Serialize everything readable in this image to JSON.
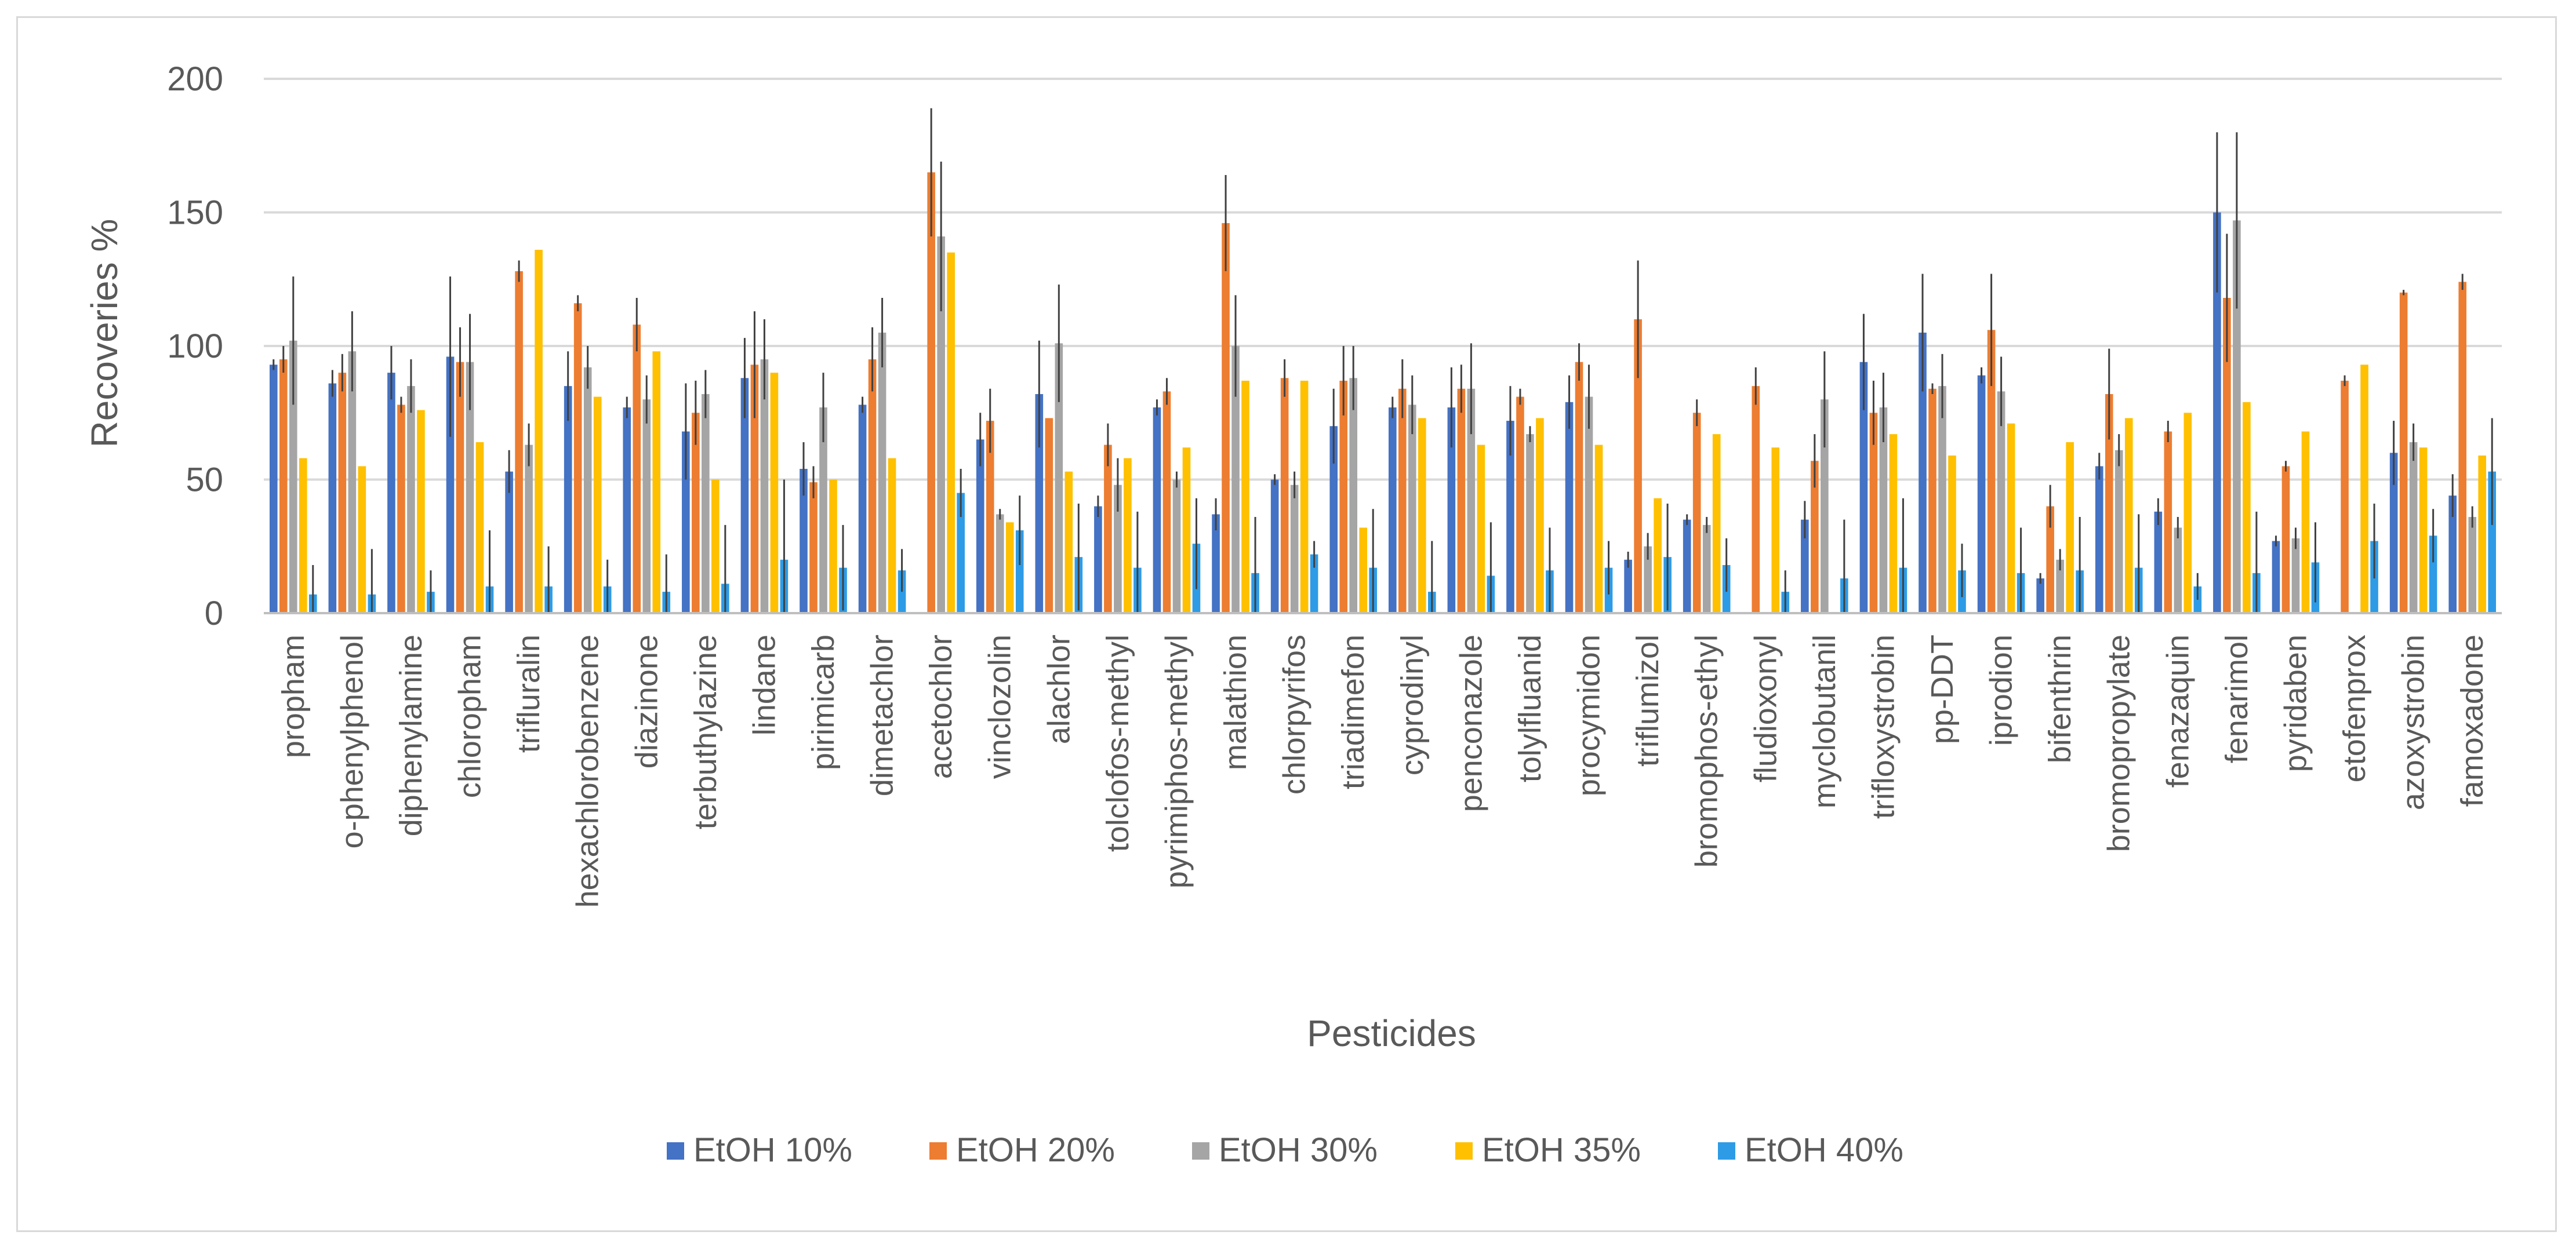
{
  "chart_data": {
    "type": "bar",
    "title": "",
    "xlabel": "Pesticides",
    "ylabel": "Recoveries %",
    "ylim": [
      0,
      200
    ],
    "yticks": [
      0,
      50,
      100,
      150,
      200
    ],
    "grid": true,
    "legend_position": "bottom",
    "categories": [
      "propham",
      "o-phenylphenol",
      "diphenylamine",
      "chloropham",
      "trifluralin",
      "hexachlorobenzene",
      "diazinone",
      "terbuthylazine",
      "lindane",
      "pirimicarb",
      "dimetachlor",
      "acetochlor",
      "vinclozolin",
      "alachlor",
      "tolclofos-methyl",
      "pyrimiphos-methyl",
      "malathion",
      "chlorpyrifos",
      "triadimefon",
      "cyprodinyl",
      "penconazole",
      "tolylfluanid",
      "procymidon",
      "triflumizol",
      "bromophos-ethyl",
      "fludioxonyl",
      "myclobutanil",
      "trifloxystrobin",
      "pp-DDT",
      "iprodion",
      "bifenthrin",
      "bromopropylate",
      "fenazaquin",
      "fenarimol",
      "pyridaben",
      "etofenprox",
      "azoxystrobin",
      "famoxadone"
    ],
    "series": [
      {
        "name": "EtOH 10%",
        "color": "#4472c4",
        "values": [
          93,
          86,
          90,
          96,
          53,
          85,
          77,
          68,
          88,
          54,
          78,
          0,
          65,
          82,
          40,
          77,
          37,
          50,
          70,
          77,
          77,
          72,
          79,
          20,
          35,
          0,
          35,
          94,
          105,
          89,
          13,
          55,
          38,
          150,
          27,
          0,
          60,
          44
        ],
        "errors": [
          2,
          5,
          10,
          30,
          8,
          13,
          4,
          18,
          15,
          10,
          3,
          0,
          10,
          20,
          4,
          3,
          6,
          2,
          14,
          4,
          15,
          13,
          10,
          3,
          2,
          0,
          7,
          18,
          22,
          3,
          2,
          5,
          5,
          30,
          2,
          0,
          12,
          8
        ]
      },
      {
        "name": "EtOH 20%",
        "color": "#ed7d31",
        "values": [
          95,
          90,
          78,
          94,
          128,
          116,
          108,
          75,
          93,
          49,
          95,
          165,
          72,
          73,
          63,
          83,
          146,
          88,
          87,
          84,
          84,
          81,
          94,
          110,
          75,
          85,
          57,
          75,
          84,
          106,
          40,
          82,
          68,
          118,
          55,
          87,
          120,
          124
        ],
        "errors": [
          5,
          7,
          3,
          13,
          4,
          3,
          10,
          12,
          20,
          6,
          12,
          24,
          12,
          0,
          8,
          5,
          18,
          7,
          13,
          11,
          9,
          3,
          7,
          22,
          5,
          7,
          10,
          12,
          2,
          21,
          8,
          17,
          4,
          24,
          2,
          2,
          1,
          3
        ]
      },
      {
        "name": "EtOH 30%",
        "color": "#a5a5a5",
        "values": [
          102,
          98,
          85,
          94,
          63,
          92,
          80,
          82,
          95,
          77,
          105,
          141,
          37,
          101,
          48,
          50,
          100,
          48,
          88,
          78,
          84,
          67,
          81,
          25,
          33,
          0,
          80,
          77,
          85,
          83,
          20,
          61,
          32,
          147,
          28,
          0,
          64,
          36
        ],
        "errors": [
          24,
          15,
          10,
          18,
          8,
          8,
          9,
          9,
          15,
          13,
          13,
          28,
          2,
          22,
          10,
          3,
          19,
          5,
          12,
          11,
          17,
          3,
          12,
          5,
          3,
          0,
          18,
          13,
          12,
          13,
          4,
          6,
          4,
          33,
          4,
          0,
          7,
          4
        ]
      },
      {
        "name": "EtOH 35%",
        "color": "#ffc000",
        "values": [
          58,
          55,
          76,
          64,
          136,
          81,
          98,
          50,
          90,
          50,
          58,
          135,
          34,
          53,
          58,
          62,
          87,
          87,
          32,
          73,
          63,
          73,
          63,
          43,
          67,
          62,
          0,
          67,
          59,
          71,
          64,
          73,
          75,
          79,
          68,
          93,
          62,
          59
        ],
        "errors": [
          0,
          0,
          0,
          0,
          0,
          0,
          0,
          0,
          0,
          0,
          0,
          0,
          0,
          0,
          0,
          0,
          0,
          0,
          0,
          0,
          0,
          0,
          0,
          0,
          0,
          0,
          0,
          0,
          0,
          0,
          0,
          0,
          0,
          0,
          0,
          0,
          0,
          0
        ]
      },
      {
        "name": "EtOH 40%",
        "color": "#2e9be6",
        "values": [
          7,
          7,
          8,
          10,
          10,
          10,
          8,
          11,
          20,
          17,
          16,
          45,
          31,
          21,
          17,
          26,
          15,
          22,
          17,
          8,
          14,
          16,
          17,
          21,
          18,
          8,
          13,
          17,
          16,
          15,
          16,
          17,
          10,
          15,
          19,
          27,
          29,
          53
        ],
        "errors": [
          11,
          17,
          8,
          21,
          15,
          10,
          14,
          22,
          30,
          16,
          8,
          9,
          13,
          20,
          21,
          17,
          21,
          5,
          22,
          19,
          20,
          16,
          10,
          20,
          10,
          8,
          22,
          26,
          10,
          17,
          20,
          20,
          5,
          23,
          15,
          14,
          10,
          20
        ]
      }
    ]
  }
}
